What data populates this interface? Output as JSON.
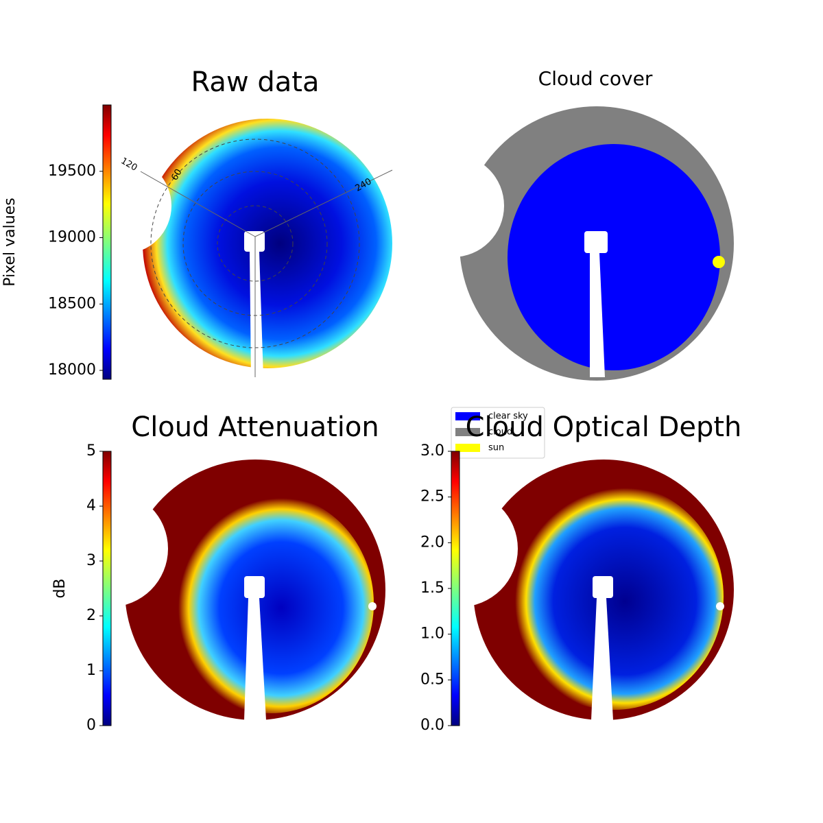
{
  "chart_data": [
    {
      "type": "image",
      "title": "Raw data",
      "colorbar_label": "Pixel values",
      "colormap": "jet",
      "ylim": [
        17933,
        20000
      ],
      "yticks": [
        18000,
        18500,
        19000,
        19500
      ],
      "annotations": [
        "120",
        "60",
        "240"
      ]
    },
    {
      "type": "image",
      "title": "Cloud cover",
      "legend": "lower left",
      "series": [
        {
          "name": "clear sky",
          "color": "#0000ff"
        },
        {
          "name": "cloud",
          "color": "#808080"
        },
        {
          "name": "sun",
          "color": "#ffff00"
        }
      ]
    },
    {
      "type": "image",
      "title": "Cloud Attenuation",
      "colorbar_label": "dB",
      "colormap": "jet",
      "ylim": [
        0,
        5
      ],
      "yticks": [
        0,
        1,
        2,
        3,
        4,
        5
      ]
    },
    {
      "type": "image",
      "title": "Cloud Optical Depth",
      "colormap": "jet",
      "ylim": [
        0,
        3
      ],
      "yticks": [
        {
          "value": 0,
          "label": "0.0"
        },
        {
          "value": 0.5,
          "label": "0.5"
        },
        {
          "value": 1,
          "label": "1.0"
        },
        {
          "value": 1.5,
          "label": "1.5"
        },
        {
          "value": 2,
          "label": "2.0"
        },
        {
          "value": 2.5,
          "label": "2.5"
        },
        {
          "value": 3,
          "label": "3.0"
        }
      ]
    }
  ]
}
